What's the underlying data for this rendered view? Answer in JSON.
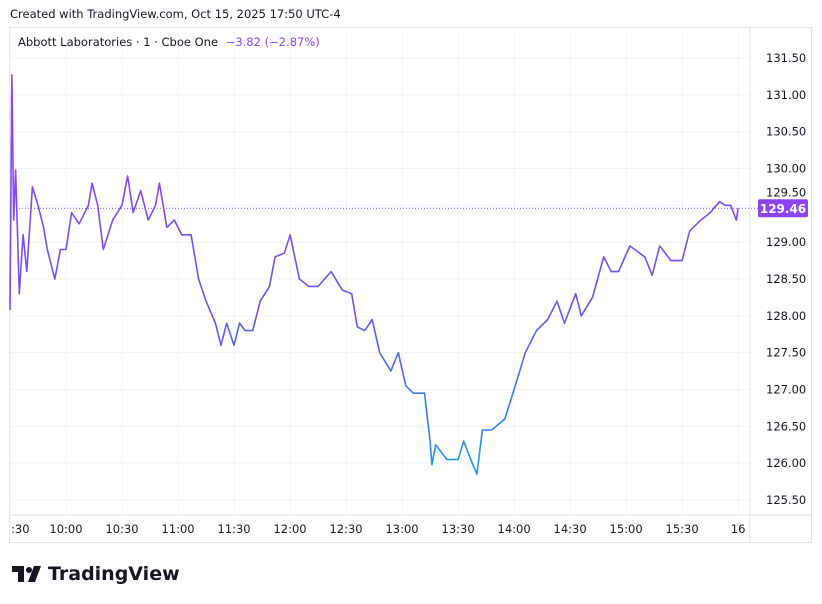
{
  "header": {
    "created": "Created with TradingView.com, Oct 15, 2025 17:50 UTC-4"
  },
  "legend": {
    "symbol": "Abbott Laboratories · 1 · Cboe One",
    "change": "−3.82 (−2.87%)"
  },
  "footer": {
    "brand": "TradingView",
    "logo_icon": "tradingview-logo-icon"
  },
  "colors": {
    "line_top": "#8e44f5",
    "line_bottom": "#2196f3",
    "price_label_bg": "#8e44f5",
    "grid": "#f0f3fa"
  },
  "chart_data": {
    "type": "line",
    "ylim": [
      125.3,
      131.9
    ],
    "y_ticks": [
      "125.50",
      "126.00",
      "126.50",
      "127.00",
      "127.50",
      "128.00",
      "128.50",
      "129.00",
      "129.50",
      "130.00",
      "130.50",
      "131.00",
      "131.50"
    ],
    "x_ticks": [
      {
        "t": 0,
        "label": ":30"
      },
      {
        "t": 30,
        "label": "10:00"
      },
      {
        "t": 60,
        "label": "10:30"
      },
      {
        "t": 90,
        "label": "11:00"
      },
      {
        "t": 120,
        "label": "11:30"
      },
      {
        "t": 150,
        "label": "12:00"
      },
      {
        "t": 180,
        "label": "12:30"
      },
      {
        "t": 210,
        "label": "13:00"
      },
      {
        "t": 240,
        "label": "13:30"
      },
      {
        "t": 270,
        "label": "14:00"
      },
      {
        "t": 300,
        "label": "14:30"
      },
      {
        "t": 330,
        "label": "15:00"
      },
      {
        "t": 360,
        "label": "15:30"
      },
      {
        "t": 390,
        "label": "16"
      }
    ],
    "last_price": "129.46",
    "last_value": 129.46,
    "grid": true,
    "points": [
      [
        0,
        128.08
      ],
      [
        1,
        131.27
      ],
      [
        2,
        129.3
      ],
      [
        3,
        129.98
      ],
      [
        5,
        128.3
      ],
      [
        7,
        129.1
      ],
      [
        9,
        128.6
      ],
      [
        12,
        129.75
      ],
      [
        15,
        129.5
      ],
      [
        18,
        129.2
      ],
      [
        20,
        128.9
      ],
      [
        24,
        128.5
      ],
      [
        27,
        128.9
      ],
      [
        30,
        128.9
      ],
      [
        33,
        129.4
      ],
      [
        37,
        129.25
      ],
      [
        42,
        129.5
      ],
      [
        44,
        129.8
      ],
      [
        47,
        129.5
      ],
      [
        50,
        128.9
      ],
      [
        55,
        129.3
      ],
      [
        60,
        129.5
      ],
      [
        63,
        129.9
      ],
      [
        66,
        129.4
      ],
      [
        70,
        129.7
      ],
      [
        74,
        129.3
      ],
      [
        78,
        129.5
      ],
      [
        80,
        129.8
      ],
      [
        84,
        129.2
      ],
      [
        88,
        129.3
      ],
      [
        92,
        129.1
      ],
      [
        97,
        129.1
      ],
      [
        101,
        128.5
      ],
      [
        105,
        128.2
      ],
      [
        110,
        127.9
      ],
      [
        113,
        127.6
      ],
      [
        116,
        127.9
      ],
      [
        120,
        127.6
      ],
      [
        123,
        127.9
      ],
      [
        126,
        127.8
      ],
      [
        130,
        127.8
      ],
      [
        134,
        128.2
      ],
      [
        139,
        128.4
      ],
      [
        142,
        128.8
      ],
      [
        147,
        128.85
      ],
      [
        150,
        129.1
      ],
      [
        155,
        128.5
      ],
      [
        160,
        128.4
      ],
      [
        165,
        128.4
      ],
      [
        172,
        128.6
      ],
      [
        178,
        128.35
      ],
      [
        183,
        128.3
      ],
      [
        186,
        127.85
      ],
      [
        190,
        127.8
      ],
      [
        194,
        127.95
      ],
      [
        198,
        127.5
      ],
      [
        204,
        127.25
      ],
      [
        208,
        127.5
      ],
      [
        212,
        127.05
      ],
      [
        216,
        126.95
      ],
      [
        222,
        126.95
      ],
      [
        225,
        126.3
      ],
      [
        226,
        125.98
      ],
      [
        228,
        126.25
      ],
      [
        234,
        126.05
      ],
      [
        240,
        126.05
      ],
      [
        243,
        126.3
      ],
      [
        246,
        126.1
      ],
      [
        250,
        125.85
      ],
      [
        253,
        126.45
      ],
      [
        258,
        126.45
      ],
      [
        265,
        126.6
      ],
      [
        270,
        127.0
      ],
      [
        276,
        127.5
      ],
      [
        282,
        127.8
      ],
      [
        288,
        127.95
      ],
      [
        293,
        128.2
      ],
      [
        297,
        127.9
      ],
      [
        303,
        128.3
      ],
      [
        306,
        128.0
      ],
      [
        312,
        128.25
      ],
      [
        318,
        128.8
      ],
      [
        322,
        128.6
      ],
      [
        326,
        128.6
      ],
      [
        332,
        128.95
      ],
      [
        340,
        128.8
      ],
      [
        344,
        128.55
      ],
      [
        348,
        128.95
      ],
      [
        354,
        128.75
      ],
      [
        360,
        128.75
      ],
      [
        364,
        129.15
      ],
      [
        370,
        129.3
      ],
      [
        375,
        129.4
      ],
      [
        380,
        129.55
      ],
      [
        383,
        129.5
      ],
      [
        386,
        129.5
      ],
      [
        389,
        129.3
      ],
      [
        390,
        129.46
      ]
    ]
  }
}
